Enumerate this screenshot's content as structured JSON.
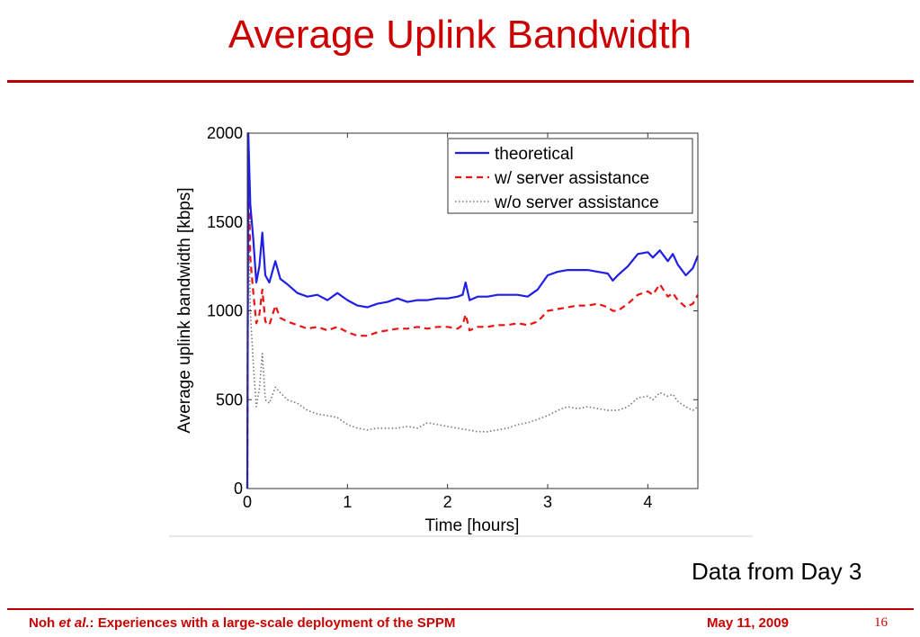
{
  "slide": {
    "title": "Average Uplink Bandwidth",
    "caption": "Data from Day 3",
    "footer": {
      "author": "Noh",
      "etal": "et al.",
      "citation_rest": ": Experiences with a large-scale deployment of the SPPM",
      "date": "May 11, 2009",
      "page": "16"
    }
  },
  "colors": {
    "title": "#cc0000",
    "rule": "#c00000",
    "theoretical": "#1f1fe6",
    "with_server": "#ee1111",
    "without_server": "#777777"
  },
  "chart_data": {
    "type": "line",
    "xlabel": "Time [hours]",
    "ylabel": "Average uplink bandwidth [kbps]",
    "xlim": [
      0,
      4.5
    ],
    "ylim": [
      0,
      2000
    ],
    "xticks": [
      0,
      1,
      2,
      3,
      4
    ],
    "yticks": [
      0,
      500,
      1000,
      1500,
      2000
    ],
    "grid": false,
    "legend_position": "top-right",
    "series": [
      {
        "name": "theoretical",
        "style": "solid",
        "points": [
          [
            0,
            0
          ],
          [
            0.01,
            2000
          ],
          [
            0.03,
            1600
          ],
          [
            0.06,
            1400
          ],
          [
            0.09,
            1160
          ],
          [
            0.12,
            1250
          ],
          [
            0.15,
            1440
          ],
          [
            0.18,
            1200
          ],
          [
            0.22,
            1160
          ],
          [
            0.28,
            1280
          ],
          [
            0.33,
            1180
          ],
          [
            0.4,
            1150
          ],
          [
            0.5,
            1100
          ],
          [
            0.6,
            1080
          ],
          [
            0.7,
            1090
          ],
          [
            0.8,
            1060
          ],
          [
            0.9,
            1100
          ],
          [
            1.0,
            1060
          ],
          [
            1.1,
            1030
          ],
          [
            1.2,
            1020
          ],
          [
            1.3,
            1040
          ],
          [
            1.4,
            1050
          ],
          [
            1.5,
            1070
          ],
          [
            1.6,
            1050
          ],
          [
            1.7,
            1060
          ],
          [
            1.8,
            1060
          ],
          [
            1.9,
            1070
          ],
          [
            2.0,
            1070
          ],
          [
            2.1,
            1080
          ],
          [
            2.15,
            1090
          ],
          [
            2.18,
            1160
          ],
          [
            2.22,
            1060
          ],
          [
            2.3,
            1080
          ],
          [
            2.4,
            1080
          ],
          [
            2.5,
            1090
          ],
          [
            2.6,
            1090
          ],
          [
            2.7,
            1090
          ],
          [
            2.8,
            1080
          ],
          [
            2.9,
            1120
          ],
          [
            3.0,
            1200
          ],
          [
            3.1,
            1220
          ],
          [
            3.2,
            1230
          ],
          [
            3.3,
            1230
          ],
          [
            3.4,
            1230
          ],
          [
            3.5,
            1220
          ],
          [
            3.6,
            1210
          ],
          [
            3.65,
            1170
          ],
          [
            3.7,
            1200
          ],
          [
            3.8,
            1250
          ],
          [
            3.9,
            1320
          ],
          [
            4.0,
            1330
          ],
          [
            4.05,
            1300
          ],
          [
            4.12,
            1340
          ],
          [
            4.2,
            1280
          ],
          [
            4.25,
            1320
          ],
          [
            4.3,
            1260
          ],
          [
            4.38,
            1200
          ],
          [
            4.45,
            1240
          ],
          [
            4.5,
            1310
          ]
        ]
      },
      {
        "name": "w/ server assistance",
        "style": "dashed",
        "points": [
          [
            0,
            0
          ],
          [
            0.01,
            1900
          ],
          [
            0.03,
            1300
          ],
          [
            0.06,
            1100
          ],
          [
            0.09,
            930
          ],
          [
            0.12,
            980
          ],
          [
            0.15,
            1120
          ],
          [
            0.18,
            940
          ],
          [
            0.22,
            920
          ],
          [
            0.28,
            1030
          ],
          [
            0.33,
            960
          ],
          [
            0.4,
            940
          ],
          [
            0.5,
            920
          ],
          [
            0.6,
            900
          ],
          [
            0.7,
            910
          ],
          [
            0.8,
            890
          ],
          [
            0.9,
            910
          ],
          [
            1.0,
            880
          ],
          [
            1.1,
            860
          ],
          [
            1.2,
            860
          ],
          [
            1.3,
            880
          ],
          [
            1.4,
            890
          ],
          [
            1.5,
            900
          ],
          [
            1.6,
            900
          ],
          [
            1.7,
            910
          ],
          [
            1.8,
            900
          ],
          [
            1.9,
            910
          ],
          [
            2.0,
            910
          ],
          [
            2.1,
            900
          ],
          [
            2.15,
            920
          ],
          [
            2.18,
            980
          ],
          [
            2.22,
            890
          ],
          [
            2.3,
            910
          ],
          [
            2.4,
            910
          ],
          [
            2.5,
            920
          ],
          [
            2.6,
            920
          ],
          [
            2.7,
            930
          ],
          [
            2.8,
            920
          ],
          [
            2.9,
            940
          ],
          [
            3.0,
            1000
          ],
          [
            3.1,
            1010
          ],
          [
            3.2,
            1020
          ],
          [
            3.3,
            1030
          ],
          [
            3.4,
            1030
          ],
          [
            3.5,
            1040
          ],
          [
            3.6,
            1020
          ],
          [
            3.65,
            1000
          ],
          [
            3.7,
            1000
          ],
          [
            3.8,
            1040
          ],
          [
            3.9,
            1090
          ],
          [
            4.0,
            1110
          ],
          [
            4.05,
            1090
          ],
          [
            4.12,
            1150
          ],
          [
            4.2,
            1080
          ],
          [
            4.25,
            1100
          ],
          [
            4.3,
            1060
          ],
          [
            4.38,
            1020
          ],
          [
            4.45,
            1040
          ],
          [
            4.5,
            1090
          ]
        ]
      },
      {
        "name": "w/o server assistance",
        "style": "dotted",
        "points": [
          [
            0,
            0
          ],
          [
            0.01,
            1700
          ],
          [
            0.03,
            1000
          ],
          [
            0.06,
            700
          ],
          [
            0.09,
            460
          ],
          [
            0.12,
            560
          ],
          [
            0.15,
            760
          ],
          [
            0.18,
            500
          ],
          [
            0.22,
            480
          ],
          [
            0.28,
            570
          ],
          [
            0.33,
            540
          ],
          [
            0.4,
            500
          ],
          [
            0.5,
            480
          ],
          [
            0.6,
            440
          ],
          [
            0.7,
            420
          ],
          [
            0.8,
            410
          ],
          [
            0.9,
            400
          ],
          [
            1.0,
            360
          ],
          [
            1.1,
            340
          ],
          [
            1.2,
            330
          ],
          [
            1.3,
            340
          ],
          [
            1.4,
            340
          ],
          [
            1.5,
            340
          ],
          [
            1.6,
            350
          ],
          [
            1.7,
            340
          ],
          [
            1.8,
            370
          ],
          [
            1.9,
            360
          ],
          [
            2.0,
            350
          ],
          [
            2.1,
            340
          ],
          [
            2.2,
            330
          ],
          [
            2.3,
            320
          ],
          [
            2.4,
            320
          ],
          [
            2.5,
            330
          ],
          [
            2.6,
            340
          ],
          [
            2.7,
            360
          ],
          [
            2.8,
            370
          ],
          [
            2.9,
            390
          ],
          [
            3.0,
            410
          ],
          [
            3.1,
            440
          ],
          [
            3.2,
            460
          ],
          [
            3.3,
            450
          ],
          [
            3.4,
            460
          ],
          [
            3.5,
            450
          ],
          [
            3.6,
            440
          ],
          [
            3.7,
            440
          ],
          [
            3.8,
            460
          ],
          [
            3.9,
            510
          ],
          [
            4.0,
            520
          ],
          [
            4.05,
            500
          ],
          [
            4.12,
            540
          ],
          [
            4.2,
            520
          ],
          [
            4.25,
            530
          ],
          [
            4.3,
            490
          ],
          [
            4.38,
            460
          ],
          [
            4.45,
            440
          ],
          [
            4.5,
            460
          ]
        ]
      }
    ]
  }
}
